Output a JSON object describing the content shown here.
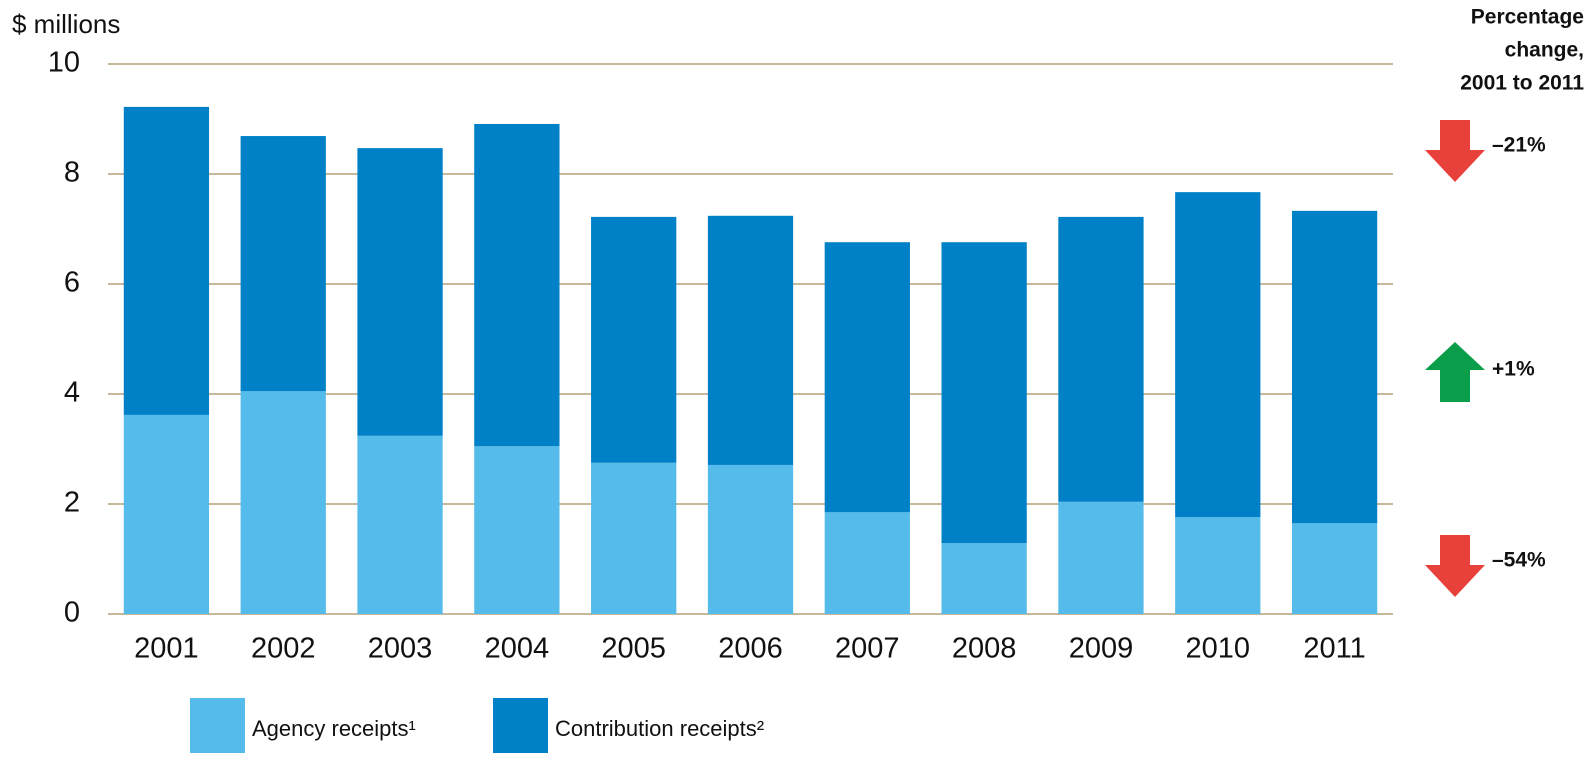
{
  "chart_data": {
    "type": "stacked_bar",
    "y_axis_label": "$ millions",
    "categories": [
      "2001",
      "2002",
      "2003",
      "2004",
      "2005",
      "2006",
      "2007",
      "2008",
      "2009",
      "2010",
      "2011"
    ],
    "series": [
      {
        "name": "Agency receipts¹",
        "color": "#55bbea",
        "values": [
          3.62,
          4.05,
          3.24,
          3.05,
          2.75,
          2.71,
          1.85,
          1.29,
          2.04,
          1.76,
          1.65
        ]
      },
      {
        "name": "Contribution receipts²",
        "color": "#0080c6",
        "values": [
          5.6,
          4.64,
          5.23,
          5.86,
          4.47,
          4.53,
          4.91,
          5.47,
          5.18,
          5.91,
          5.68
        ]
      }
    ],
    "ylim": [
      0,
      10
    ],
    "yticks": [
      0,
      2,
      4,
      6,
      8,
      10
    ],
    "grid": true,
    "annotation_title": [
      "Percentage",
      "change,",
      "2001 to 2011"
    ],
    "annotations": [
      {
        "label": "–21%",
        "direction": "down",
        "color": "#e8413c"
      },
      {
        "label": "+1%",
        "direction": "up",
        "color": "#0a9e4a"
      },
      {
        "label": "–54%",
        "direction": "down",
        "color": "#e8413c"
      }
    ]
  }
}
